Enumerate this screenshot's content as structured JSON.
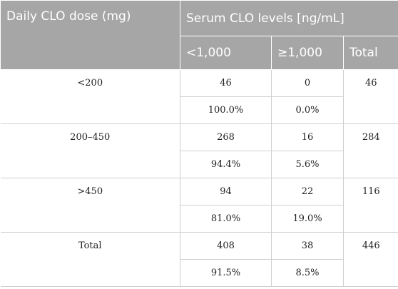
{
  "header": {
    "col_dose": "Daily CLO dose (mg)",
    "col_levels": "Serum CLO levels [ng/mL]",
    "sub_lt": "<1,000",
    "sub_ge": "≥1,000",
    "sub_total": "Total"
  },
  "rows": [
    {
      "dose": "<200",
      "lt_n": "46",
      "ge_n": "0",
      "total": "46",
      "lt_pct": "100.0%",
      "ge_pct": "0.0%"
    },
    {
      "dose": "200–450",
      "lt_n": "268",
      "ge_n": "16",
      "total": "284",
      "lt_pct": "94.4%",
      "ge_pct": "5.6%"
    },
    {
      "dose": ">450",
      "lt_n": "94",
      "ge_n": "22",
      "total": "116",
      "lt_pct": "81.0%",
      "ge_pct": "19.0%"
    },
    {
      "dose": "Total",
      "lt_n": "408",
      "ge_n": "38",
      "total": "446",
      "lt_pct": "91.5%",
      "ge_pct": "8.5%"
    }
  ]
}
